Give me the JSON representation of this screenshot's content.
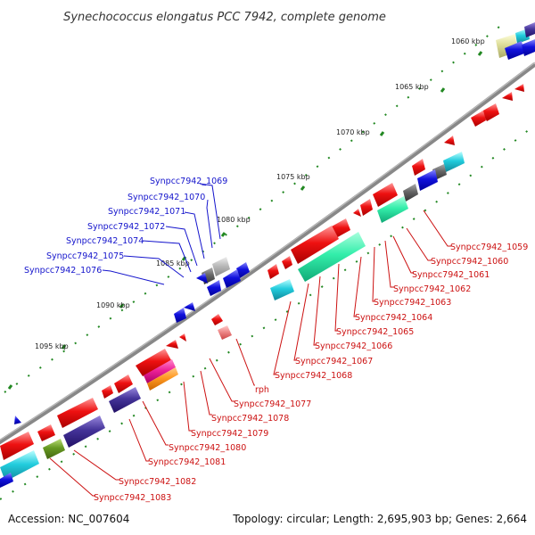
{
  "title": "Synechococcus elongatus PCC 7942, complete genome",
  "footer": {
    "accession": "Accession: NC_007604",
    "summary": "Topology: circular; Length: 2,695,903 bp; Genes: 2,664"
  },
  "kbp_ticks": [
    "1060 kbp",
    "1065 kbp",
    "1070 kbp",
    "1075 kbp",
    "1080 kbp",
    "1085 kbp",
    "1090 kbp",
    "1095 kbp"
  ],
  "blue_labels": [
    "Synpcc7942_1069",
    "Synpcc7942_1070",
    "Synpcc7942_1071",
    "Synpcc7942_1072",
    "Synpcc7942_1074",
    "Synpcc7942_1075",
    "Synpcc7942_1076"
  ],
  "red_labels": [
    "Synpcc7942_1059",
    "Synpcc7942_1060",
    "Synpcc7942_1061",
    "Synpcc7942_1062",
    "Synpcc7942_1063",
    "Synpcc7942_1064",
    "Synpcc7942_1065",
    "Synpcc7942_1066",
    "Synpcc7942_1067",
    "Synpcc7942_1068",
    "rph",
    "Synpcc7942_1077",
    "Synpcc7942_1078",
    "Synpcc7942_1079",
    "Synpcc7942_1080",
    "Synpcc7942_1081",
    "Synpcc7942_1082",
    "Synpcc7942_1083"
  ],
  "colors": {
    "backbone": "#777777",
    "cds_forward": "#ee1111",
    "cds_reverse": "#1111dd",
    "rna": "#33eeaa",
    "cyan": "#22ccdd",
    "purple": "#443399",
    "olive": "#669922",
    "khaki": "#dddd99",
    "magenta": "#ee2299",
    "orange": "#ff9922",
    "gray": "#666666",
    "green_tick": "#228822",
    "label_blue": "#1414cc",
    "label_red": "#cc1111"
  }
}
